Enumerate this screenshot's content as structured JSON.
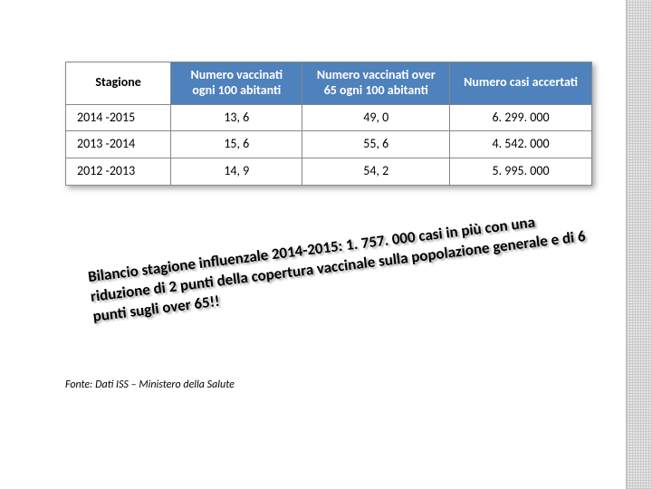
{
  "table": {
    "header_bg_colored": "#4f81bd",
    "header_fg_colored": "#ffffff",
    "columns": [
      {
        "label": "Stagione",
        "align": "center"
      },
      {
        "label": "Numero vaccinati ogni 100 abitanti",
        "align": "center"
      },
      {
        "label": "Numero vaccinati over 65 ogni 100 abitanti",
        "align": "center"
      },
      {
        "label": "Numero casi accertati",
        "align": "center"
      }
    ],
    "rows": [
      {
        "stagione": "2014 -2015",
        "v100": "13, 6",
        "v65": "49, 0",
        "casi": "6. 299. 000"
      },
      {
        "stagione": "2013 -2014",
        "v100": "15, 6",
        "v65": "55, 6",
        "casi": "4. 542. 000"
      },
      {
        "stagione": "2012 -2013",
        "v100": "14, 9",
        "v65": "54, 2",
        "casi": "5. 995. 000"
      }
    ]
  },
  "note": {
    "text": "Bilancio stagione influenzale 2014-2015: 1. 757. 000 casi in più con una riduzione di 2 punti della copertura vaccinale sulla popolazione generale e di 6 punti sugli over 65!!"
  },
  "source": {
    "text": "Fonte: Dati ISS – Ministero della Salute"
  },
  "style": {
    "page_bg": "#ffffff",
    "texture_color": "#c9c9c9",
    "shadow": "rgba(0,0,0,0.35)",
    "font_family": "Calibri, Arial, sans-serif",
    "table_border": "#888888",
    "note_rotation_deg": -7
  }
}
